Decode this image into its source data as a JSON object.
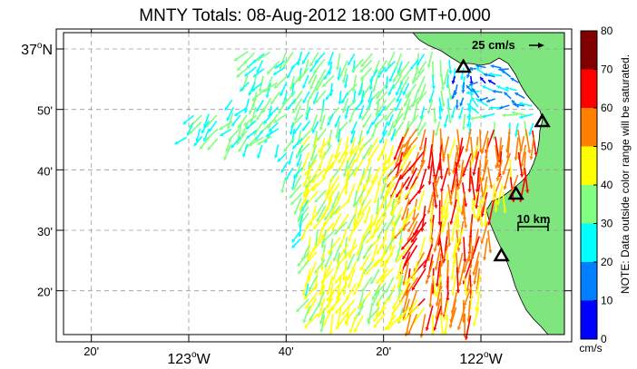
{
  "title": "MNTY Totals: 08-Aug-2012 18:00 GMT+0.000",
  "scale_arrow_label": "25 cm/s",
  "scale_bar_label": "10 km",
  "lat_ticks": [
    {
      "label": "37",
      "sup": "o",
      "suffix": "N",
      "lat": 37.0
    },
    {
      "label": "50'",
      "lat": 36.8333
    },
    {
      "label": "40'",
      "lat": 36.6667
    },
    {
      "label": "30'",
      "lat": 36.5
    },
    {
      "label": "20'",
      "lat": 36.3333
    }
  ],
  "lon_ticks": [
    {
      "label": "20'",
      "lon": -123.3333
    },
    {
      "label": "123",
      "sup": "o",
      "suffix": "W",
      "lon": -123.0
    },
    {
      "label": "40'",
      "lon": -122.6667
    },
    {
      "label": "20'",
      "lon": -122.3333
    },
    {
      "label": "122",
      "sup": "o",
      "suffix": "W",
      "lon": -122.0
    }
  ],
  "colorbar": {
    "ticks": [
      "80",
      "70",
      "60",
      "50",
      "40",
      "30",
      "20",
      "10",
      "0"
    ],
    "unit": "cm/s",
    "note": "NOTE: Data outside color range will be saturated.",
    "colors": [
      "#0000ff",
      "#0080ff",
      "#00ffff",
      "#80ff80",
      "#ffff00",
      "#ff8000",
      "#ff0000",
      "#800000"
    ]
  },
  "colors": {
    "land": "#7fe57f",
    "grid": "#9a9a9a",
    "station_marker": "#000000"
  },
  "stations": [
    {
      "name": "station-1",
      "lat": 36.95,
      "lon": -122.06
    },
    {
      "name": "station-2",
      "lat": 36.8,
      "lon": -121.79
    },
    {
      "name": "station-3",
      "lat": 36.6,
      "lon": -121.88
    },
    {
      "name": "station-4",
      "lat": 36.43,
      "lon": -121.93
    }
  ]
}
